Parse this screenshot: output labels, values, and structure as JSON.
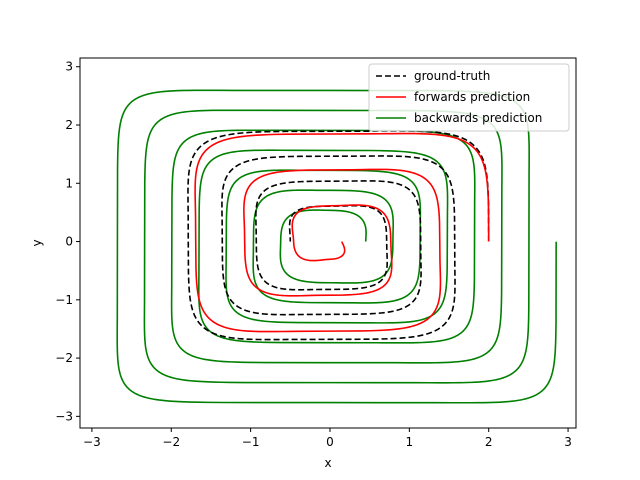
{
  "chart_data": {
    "type": "line",
    "xlabel": "x",
    "ylabel": "y",
    "xlim": [
      -3.15,
      3.1
    ],
    "ylim": [
      -3.2,
      3.15
    ],
    "xticks": [
      -3,
      -2,
      -1,
      0,
      1,
      2,
      3
    ],
    "yticks": [
      -3,
      -2,
      -1,
      0,
      1,
      2,
      3
    ],
    "grid": false,
    "legend": {
      "placement": "top-right",
      "entries": [
        {
          "label": "ground-truth",
          "color": "#000000",
          "style": "dashed"
        },
        {
          "label": "forwards prediction",
          "color": "#ff0000",
          "style": "solid"
        },
        {
          "label": "backwards prediction",
          "color": "#008000",
          "style": "solid"
        }
      ]
    },
    "series": [
      {
        "name": "ground-truth",
        "color": "#000000",
        "style": "dashed",
        "spiral": {
          "a0": 2.0,
          "a1": 0.5,
          "turns": 3.5,
          "p0": 6,
          "p1": 4
        }
      },
      {
        "name": "forwards prediction",
        "color": "#ff0000",
        "style": "solid",
        "spiral": {
          "a0": 2.0,
          "a1": 0.15,
          "turns": 3.0,
          "p0": 6,
          "p1": 3
        }
      },
      {
        "name": "backwards prediction",
        "color": "#008000",
        "style": "solid",
        "spiral": {
          "a0": 0.45,
          "a1": 2.85,
          "turns": 7.0,
          "p0": 3,
          "p1": 10
        }
      }
    ]
  }
}
